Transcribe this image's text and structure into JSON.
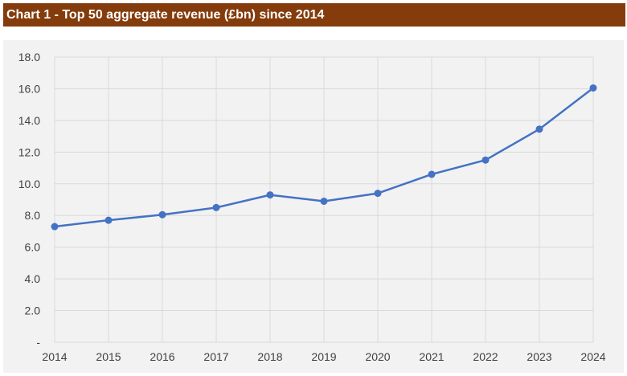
{
  "title": "Chart 1 - Top 50 aggregate revenue (£bn) since 2014",
  "chart_data": {
    "type": "line",
    "title": "Chart 1 - Top 50 aggregate revenue (£bn) since 2014",
    "xlabel": "",
    "ylabel": "",
    "x": [
      "2014",
      "2015",
      "2016",
      "2017",
      "2018",
      "2019",
      "2020",
      "2021",
      "2022",
      "2023",
      "2024"
    ],
    "series": [
      {
        "values": [
          7.3,
          7.7,
          8.05,
          8.5,
          9.3,
          8.9,
          9.4,
          10.6,
          11.5,
          13.45,
          16.05
        ],
        "color": "#4472c4"
      }
    ],
    "ylim": [
      0,
      18
    ],
    "y_ticks": [
      0,
      2,
      4,
      6,
      8,
      10,
      12,
      14,
      16,
      18
    ],
    "y_tick_labels": [
      "-",
      "2.0",
      "4.0",
      "6.0",
      "8.0",
      "10.0",
      "12.0",
      "14.0",
      "16.0",
      "18.0"
    ],
    "grid": true,
    "legend": "none"
  },
  "colors": {
    "header_background": "#843c0c",
    "header_text": "#ffffff",
    "plot_background": "#f2f2f2",
    "gridline": "#d9d9d9",
    "axis_text": "#404040",
    "series": "#4472c4"
  }
}
